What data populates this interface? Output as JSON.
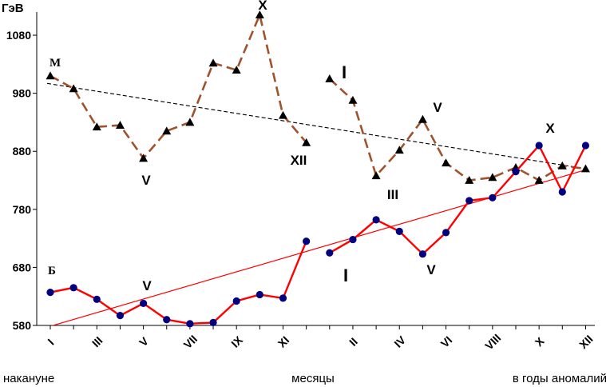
{
  "chart_data": {
    "type": "line",
    "ylabel": "ГэВ",
    "ylim": [
      580,
      1120
    ],
    "yticks": [
      "1080",
      "980",
      "880",
      "780",
      "680",
      "580"
    ],
    "x_month_labels": [
      "I",
      "III",
      "V",
      "VII",
      "IX",
      "XI",
      "II",
      "IV",
      "VI",
      "VIII",
      "X",
      "XII"
    ],
    "group_labels": {
      "left": "накануне",
      "center": "месяцы",
      "right": "в годы аномалий"
    },
    "series_labels": {
      "M": "М",
      "B": "Б"
    },
    "annotations": [
      "X",
      "V",
      "XII",
      "I",
      "III",
      "V",
      "X",
      "V",
      "I",
      "V"
    ],
    "colors": {
      "M": "#a0522d",
      "B": "#ff0000",
      "marker_B": "#000080",
      "trend_M": "#000000",
      "trend_B": "#ff0000"
    },
    "series": [
      {
        "id": "M-before",
        "values": [
          1010,
          988,
          922,
          925,
          868,
          915,
          930,
          1032,
          1020,
          1115,
          942,
          895
        ]
      },
      {
        "id": "M-anomaly",
        "values": [
          1005,
          968,
          838,
          882,
          935,
          860,
          830,
          835,
          852,
          830,
          855,
          850
        ]
      },
      {
        "id": "B-before",
        "values": [
          637,
          645,
          625,
          597,
          618,
          590,
          583,
          585,
          622,
          633,
          627,
          725
        ]
      },
      {
        "id": "B-anomaly",
        "values": [
          705,
          728,
          762,
          742,
          703,
          740,
          795,
          800,
          845,
          890,
          810,
          890
        ]
      }
    ],
    "trends": [
      {
        "id": "M-trend",
        "from": 997,
        "to": 850
      },
      {
        "id": "B-trend",
        "from": 577,
        "to": 848
      }
    ]
  }
}
